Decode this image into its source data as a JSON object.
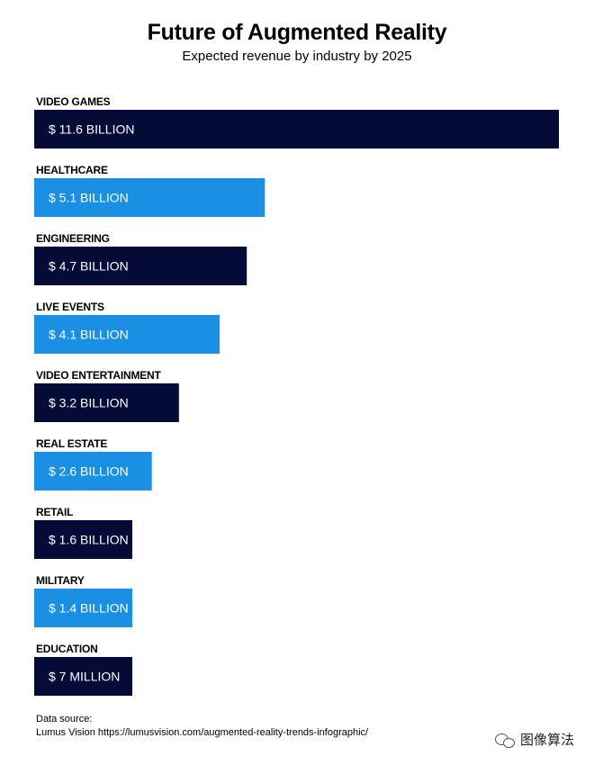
{
  "chart_data": {
    "type": "bar",
    "orientation": "horizontal",
    "title": "Future of Augmented Reality",
    "subtitle": "Expected revenue by industry by 2025",
    "categories": [
      "VIDEO GAMES",
      "HEALTHCARE",
      "ENGINEERING",
      "LIVE EVENTS",
      "VIDEO ENTERTAINMENT",
      "REAL ESTATE",
      "RETAIL",
      "MILITARY",
      "EDUCATION"
    ],
    "values": [
      11.6,
      5.1,
      4.7,
      4.1,
      3.2,
      2.6,
      1.6,
      1.4,
      0.007
    ],
    "unit": "billion USD",
    "value_labels": [
      "$ 11.6 BILLION",
      "$ 5.1 BILLION",
      "$ 4.7 BILLION",
      "$ 4.1 BILLION",
      "$ 3.2 BILLION",
      "$ 2.6 BILLION",
      "$ 1.6 BILLION",
      "$ 1.4 BILLION",
      "$ 7 MILLION"
    ],
    "bar_colors": [
      "#040b36",
      "#1a8fe3",
      "#040b36",
      "#1a8fe3",
      "#040b36",
      "#1a8fe3",
      "#040b36",
      "#1a8fe3",
      "#040b36"
    ],
    "grid": false,
    "legend": "none"
  },
  "source": {
    "line1": "Data source:",
    "line2": "Lumus Vision https://lumusvision.com/augmented-reality-trends-infographic/"
  },
  "watermark": {
    "text": "图像算法",
    "icon": "wechat-icon"
  }
}
